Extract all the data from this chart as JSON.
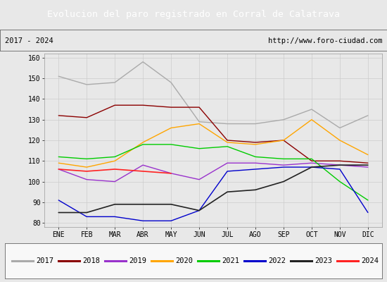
{
  "title": "Evolucion del paro registrado en Corral de Calatrava",
  "title_color": "#ffffff",
  "title_bg_color": "#5b9bd5",
  "subtitle_left": "2017 - 2024",
  "subtitle_right": "http://www.foro-ciudad.com",
  "months": [
    "ENE",
    "FEB",
    "MAR",
    "ABR",
    "MAY",
    "JUN",
    "JUL",
    "AGO",
    "SEP",
    "OCT",
    "NOV",
    "DIC"
  ],
  "ylim": [
    78,
    162
  ],
  "yticks": [
    80,
    90,
    100,
    110,
    120,
    130,
    140,
    150,
    160
  ],
  "series": {
    "2017": {
      "color": "#aaaaaa",
      "linewidth": 1.0,
      "values": [
        151,
        147,
        148,
        158,
        148,
        129,
        128,
        128,
        130,
        135,
        126,
        132
      ]
    },
    "2018": {
      "color": "#8b0000",
      "linewidth": 1.0,
      "values": [
        132,
        131,
        137,
        137,
        136,
        136,
        120,
        119,
        120,
        110,
        110,
        109
      ]
    },
    "2019": {
      "color": "#9932cc",
      "linewidth": 1.0,
      "values": [
        106,
        101,
        100,
        108,
        104,
        101,
        109,
        109,
        108,
        109,
        108,
        107
      ]
    },
    "2020": {
      "color": "#ffa500",
      "linewidth": 1.0,
      "values": [
        109,
        107,
        110,
        119,
        126,
        128,
        119,
        118,
        120,
        130,
        120,
        113
      ]
    },
    "2021": {
      "color": "#00cc00",
      "linewidth": 1.0,
      "values": [
        112,
        111,
        112,
        118,
        118,
        116,
        117,
        112,
        111,
        111,
        100,
        91
      ]
    },
    "2022": {
      "color": "#0000cc",
      "linewidth": 1.0,
      "values": [
        91,
        83,
        83,
        81,
        81,
        86,
        105,
        106,
        107,
        107,
        106,
        85
      ]
    },
    "2023": {
      "color": "#222222",
      "linewidth": 1.2,
      "values": [
        85,
        85,
        89,
        89,
        89,
        86,
        95,
        96,
        100,
        107,
        108,
        108
      ]
    },
    "2024": {
      "color": "#ff2222",
      "linewidth": 1.2,
      "values": [
        106,
        105,
        106,
        105,
        104,
        null,
        null,
        null,
        null,
        null,
        null,
        null
      ]
    }
  },
  "bg_color": "#e8e8e8",
  "plot_bg_color": "#e8e8e8",
  "grid_color": "#cccccc",
  "legend_order": [
    "2017",
    "2018",
    "2019",
    "2020",
    "2021",
    "2022",
    "2023",
    "2024"
  ]
}
